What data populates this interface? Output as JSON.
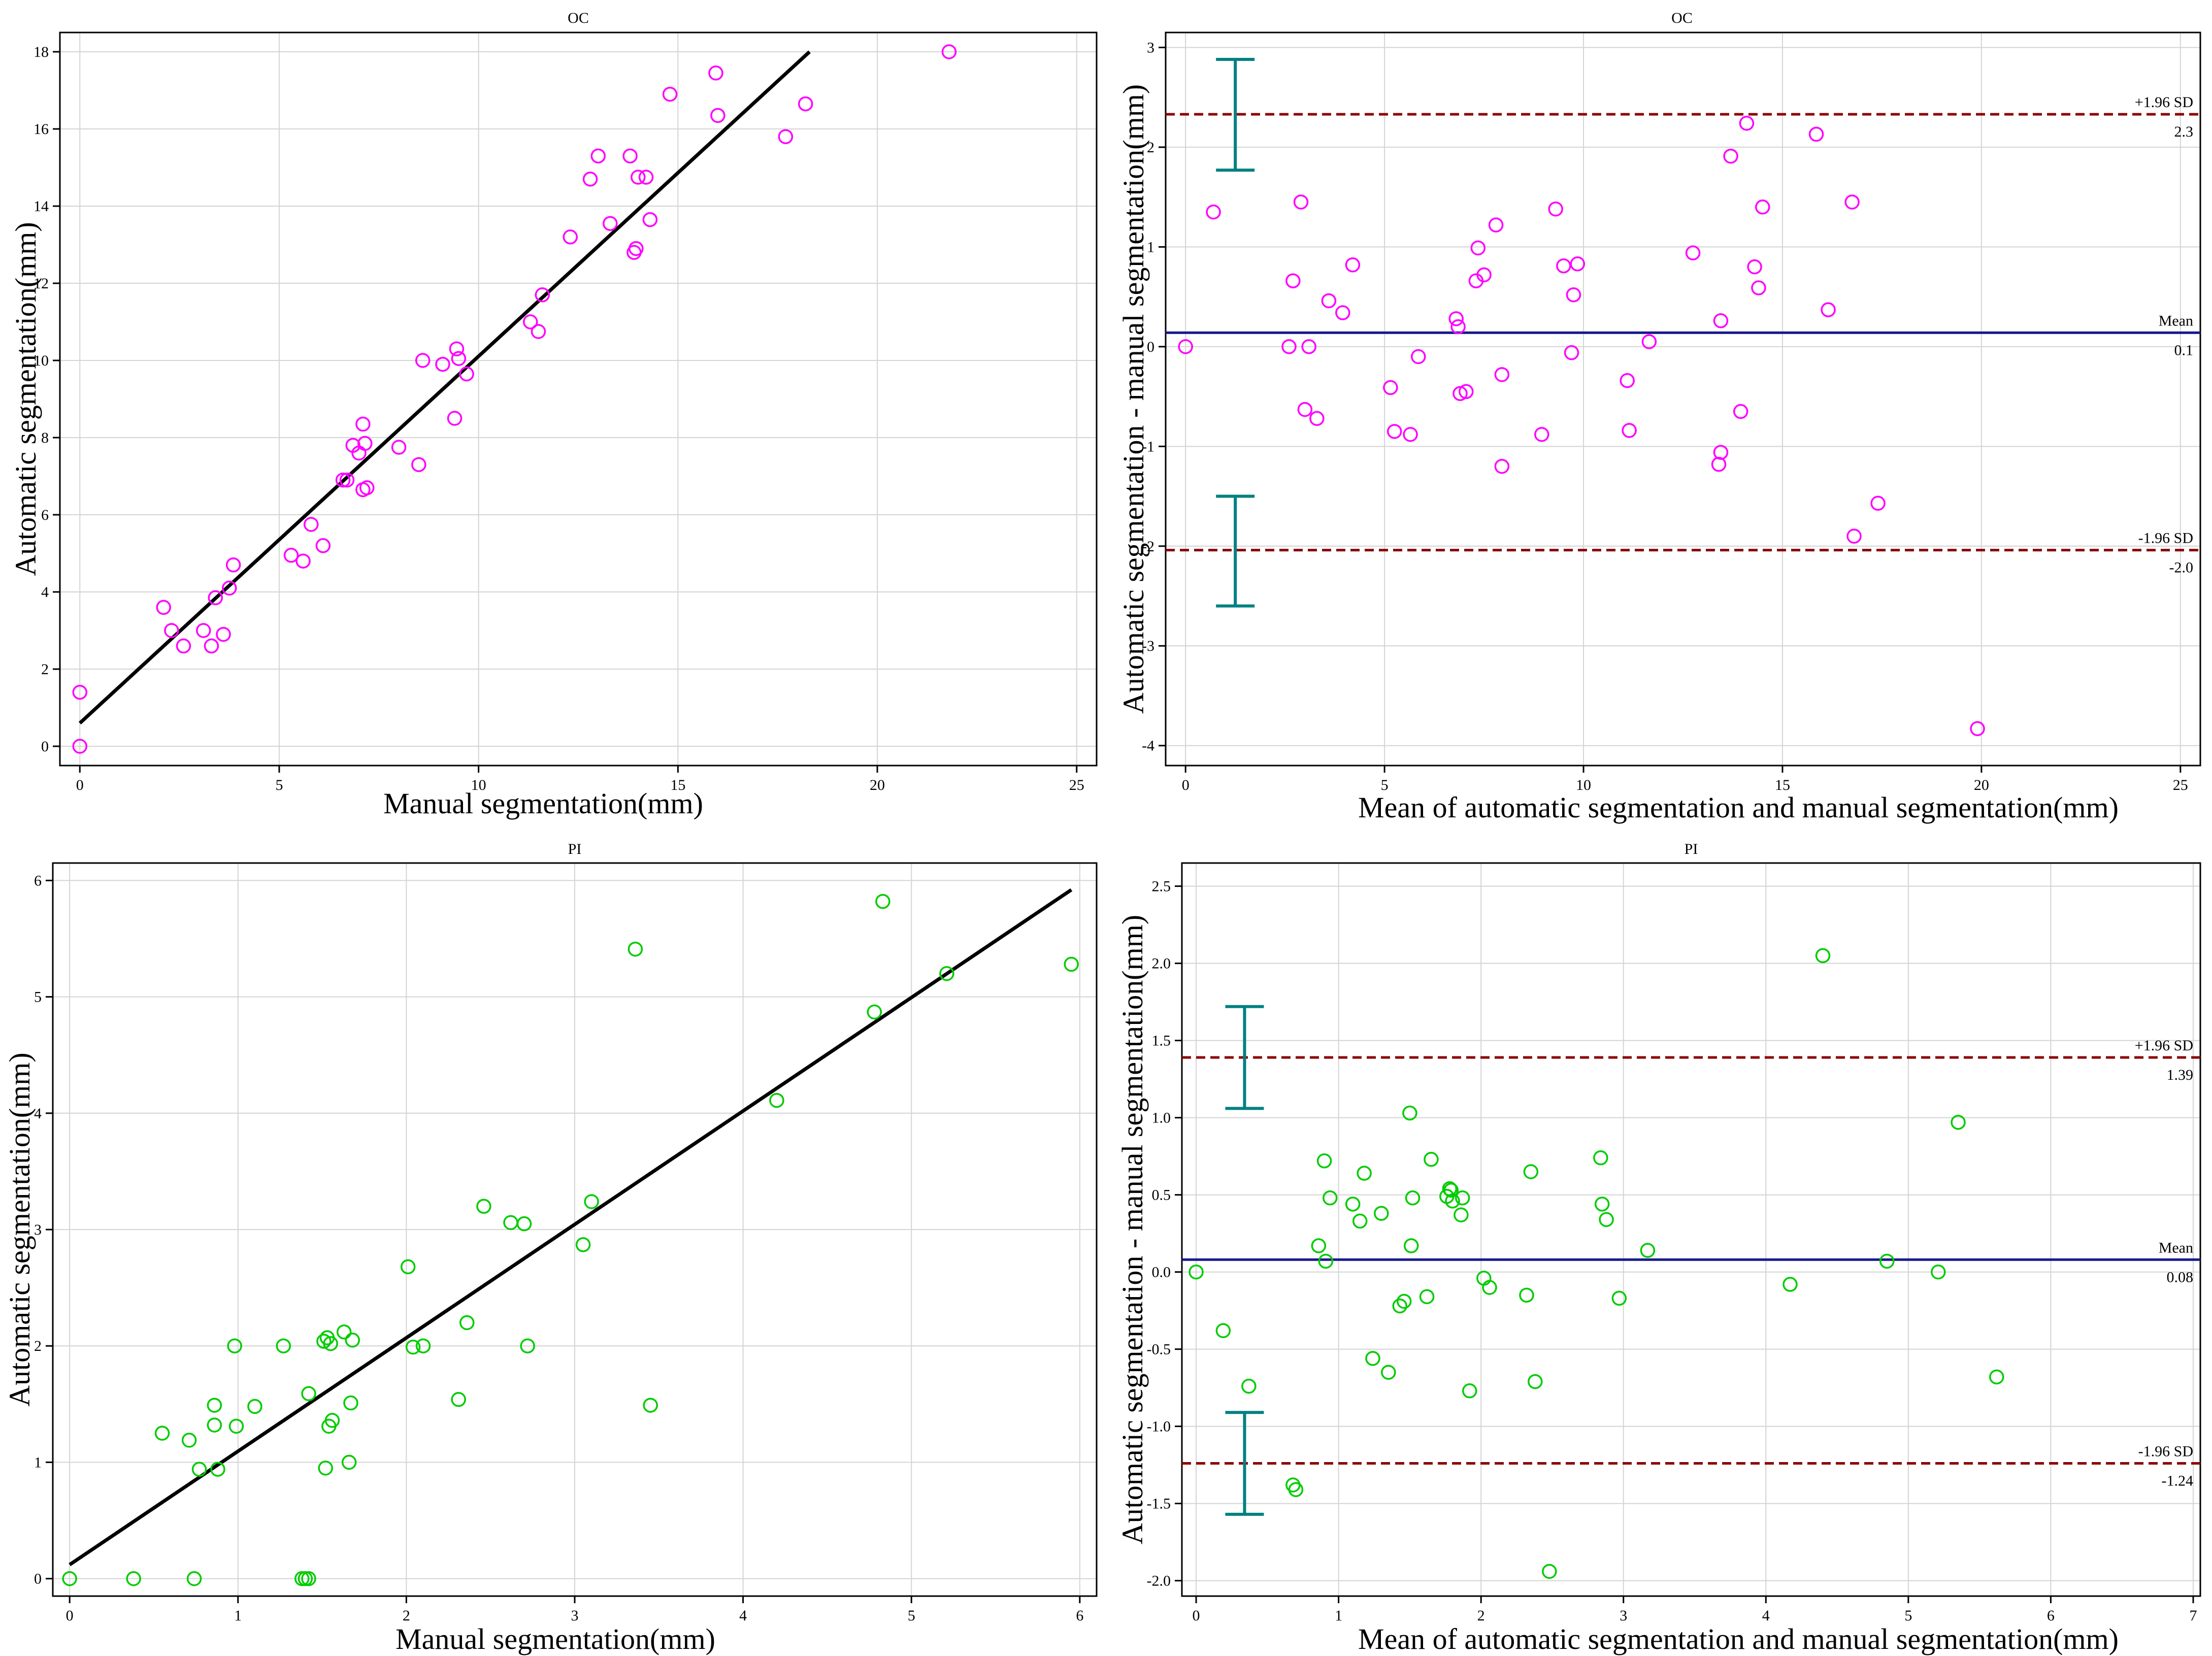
{
  "chart_data": [
    {
      "id": "oc-scatter",
      "type": "scatter",
      "title": "OC",
      "xlabel": "Manual segmentation(mm)",
      "ylabel": "Automatic segmentation(mm)",
      "xlim": [
        -0.5,
        25.5
      ],
      "ylim": [
        -0.5,
        18.5
      ],
      "xticks": [
        0,
        5,
        10,
        15,
        20,
        25
      ],
      "yticks": [
        0,
        2,
        4,
        6,
        8,
        10,
        12,
        14,
        16,
        18
      ],
      "grid": true,
      "marker_color": "#ff00ff",
      "fit_line": {
        "x": [
          0,
          18.3
        ],
        "y": [
          0.6,
          18
        ]
      },
      "points": {
        "x": [
          0,
          0,
          2.1,
          2.3,
          2.6,
          3.1,
          3.3,
          3.4,
          3.6,
          3.75,
          3.85,
          5.3,
          5.6,
          5.8,
          6.1,
          6.6,
          6.7,
          6.85,
          7.0,
          7.1,
          7.1,
          7.15,
          7.2,
          8.0,
          8.5,
          8.6,
          9.1,
          9.4,
          9.45,
          9.5,
          9.7,
          11.3,
          11.5,
          11.6,
          12.3,
          12.8,
          13.0,
          13.3,
          13.8,
          13.9,
          13.95,
          14.0,
          14.2,
          14.3,
          14.8,
          15.95,
          16.0,
          17.7,
          18.2,
          21.8
        ],
        "y": [
          0,
          1.4,
          3.6,
          3.0,
          2.6,
          3.0,
          2.6,
          3.85,
          2.9,
          4.1,
          4.7,
          4.95,
          4.8,
          5.75,
          5.2,
          6.9,
          6.9,
          7.8,
          7.6,
          8.35,
          6.65,
          7.85,
          6.7,
          7.75,
          7.3,
          10.0,
          9.9,
          8.5,
          10.3,
          10.05,
          9.65,
          11.0,
          10.75,
          11.7,
          13.2,
          14.7,
          15.3,
          13.55,
          15.3,
          12.8,
          12.9,
          14.75,
          14.75,
          13.65,
          16.9,
          17.45,
          16.35,
          15.8,
          16.65,
          18.0
        ]
      }
    },
    {
      "id": "oc-bland-altman",
      "type": "scatter",
      "title": "OC",
      "xlabel": "Mean of automatic segmentation and manual segmentation(mm)",
      "ylabel": "Automatic segmentation - manual segmentation(mm)",
      "xlim": [
        -0.5,
        25.5
      ],
      "ylim": [
        -4.2,
        3.15
      ],
      "xticks": [
        0,
        5,
        10,
        15,
        20,
        25
      ],
      "yticks": [
        -4,
        -3,
        -2,
        -1,
        0,
        1,
        2,
        3
      ],
      "grid": true,
      "marker_color": "#ff00ff",
      "mean": {
        "value": 0.14,
        "label": "Mean",
        "value_text": "0.1"
      },
      "upper_loa": {
        "value": 2.33,
        "label": "+1.96 SD",
        "value_text": "2.3"
      },
      "lower_loa": {
        "value": -2.04,
        "label": "-1.96 SD",
        "value_text": "-2.0"
      },
      "ci_x": 1.25,
      "ci_upper": [
        1.77,
        2.88
      ],
      "ci_lower": [
        -2.6,
        -1.5
      ],
      "points": {
        "x": [
          0,
          0.7,
          2.6,
          2.7,
          2.9,
          3.0,
          3.1,
          3.3,
          3.6,
          3.95,
          4.2,
          5.15,
          5.25,
          5.65,
          5.85,
          6.8,
          6.85,
          6.9,
          7.05,
          7.3,
          7.35,
          7.5,
          7.8,
          7.95,
          7.95,
          8.95,
          9.3,
          9.5,
          9.7,
          9.75,
          9.85,
          11.1,
          11.15,
          11.65,
          12.75,
          13.4,
          13.45,
          13.45,
          13.7,
          13.95,
          14.1,
          14.3,
          14.4,
          14.5,
          15.85,
          16.15,
          16.75,
          16.8,
          17.4,
          19.9
        ],
        "y": [
          0,
          1.35,
          0,
          0.66,
          1.45,
          -0.63,
          0,
          -0.72,
          0.46,
          0.34,
          0.82,
          -0.41,
          -0.85,
          -0.88,
          -0.1,
          0.28,
          0.2,
          -0.47,
          -0.45,
          0.66,
          0.99,
          0.72,
          1.22,
          -0.28,
          -1.2,
          -0.88,
          1.38,
          0.81,
          -0.06,
          0.52,
          0.83,
          -0.34,
          -0.84,
          0.05,
          0.94,
          -1.18,
          -1.06,
          0.26,
          1.91,
          -0.65,
          2.24,
          0.8,
          0.59,
          1.4,
          2.13,
          0.37,
          1.45,
          -1.9,
          -1.57,
          -3.83
        ]
      }
    },
    {
      "id": "pi-scatter",
      "type": "scatter",
      "title": "PI",
      "xlabel": "Manual segmentation(mm)",
      "ylabel": "Automatic segmentation(mm)",
      "xlim": [
        -0.1,
        6.1
      ],
      "ylim": [
        -0.15,
        6.15
      ],
      "xticks": [
        0,
        1,
        2,
        3,
        4,
        5,
        6
      ],
      "yticks": [
        0,
        1,
        2,
        3,
        4,
        5,
        6
      ],
      "grid": true,
      "marker_color": "#00cc00",
      "fit_line": {
        "x": [
          0,
          5.95
        ],
        "y": [
          0.12,
          5.92
        ]
      },
      "points": {
        "x": [
          0,
          0.38,
          0.55,
          0.71,
          0.74,
          0.77,
          0.86,
          0.86,
          0.88,
          0.98,
          0.99,
          1.1,
          1.27,
          1.42,
          1.42,
          1.38,
          1.4,
          1.51,
          1.52,
          1.53,
          1.54,
          1.55,
          1.56,
          1.63,
          1.66,
          1.67,
          1.68,
          2.01,
          2.04,
          2.1,
          2.31,
          2.36,
          2.46,
          2.62,
          2.7,
          2.72,
          3.05,
          3.1,
          3.36,
          3.45,
          4.2,
          4.78,
          4.83,
          5.21,
          5.95
        ],
        "y": [
          0,
          0,
          1.25,
          1.19,
          0,
          0.94,
          1.49,
          1.32,
          0.94,
          2.0,
          1.31,
          1.48,
          2.0,
          1.59,
          0,
          0,
          0,
          2.04,
          0.95,
          2.07,
          1.31,
          2.02,
          1.36,
          2.12,
          1.0,
          1.51,
          2.05,
          2.68,
          1.99,
          2.0,
          1.54,
          2.2,
          3.2,
          3.06,
          3.05,
          2.0,
          2.87,
          3.24,
          5.41,
          1.49,
          4.11,
          4.87,
          5.82,
          5.2,
          5.28
        ]
      }
    },
    {
      "id": "pi-bland-altman",
      "type": "scatter",
      "title": "PI",
      "xlabel": "Mean of automatic segmentation and manual segmentation(mm)",
      "ylabel": "Automatic segmentation - manual segmentation(mm)",
      "xlim": [
        -0.1,
        7.05
      ],
      "ylim": [
        -2.1,
        2.65
      ],
      "xticks": [
        0,
        1,
        2,
        3,
        4,
        5,
        6,
        7
      ],
      "yticks": [
        -2.0,
        -1.5,
        -1.0,
        -0.5,
        0.0,
        0.5,
        1.0,
        1.5,
        2.0,
        2.5
      ],
      "grid": true,
      "marker_color": "#00cc00",
      "mean": {
        "value": 0.08,
        "label": "Mean",
        "value_text": "0.08"
      },
      "upper_loa": {
        "value": 1.39,
        "label": "+1.96 SD",
        "value_text": "1.39"
      },
      "lower_loa": {
        "value": -1.24,
        "label": "-1.96 SD",
        "value_text": "-1.24"
      },
      "ci_x": 0.34,
      "ci_upper": [
        1.06,
        1.72
      ],
      "ci_lower": [
        -1.57,
        -0.91
      ],
      "points": {
        "x": [
          0,
          0.19,
          0.37,
          0.68,
          0.7,
          0.86,
          0.9,
          0.91,
          0.94,
          1.1,
          1.15,
          1.18,
          1.24,
          1.3,
          1.35,
          1.43,
          1.46,
          1.5,
          1.51,
          1.52,
          1.62,
          1.65,
          1.76,
          1.78,
          1.79,
          1.8,
          1.86,
          1.87,
          1.92,
          2.02,
          2.06,
          2.32,
          2.35,
          2.38,
          2.48,
          2.84,
          2.85,
          2.88,
          2.97,
          3.17,
          4.17,
          4.4,
          4.85,
          5.21,
          5.35,
          5.62
        ],
        "y": [
          0,
          -0.38,
          -0.74,
          -1.38,
          -1.41,
          0.17,
          0.72,
          0.07,
          0.48,
          0.44,
          0.33,
          0.64,
          -0.56,
          0.38,
          -0.65,
          -0.22,
          -0.19,
          1.03,
          0.17,
          0.48,
          -0.16,
          0.73,
          0.49,
          0.54,
          0.53,
          0.46,
          0.37,
          0.48,
          -0.77,
          -0.04,
          -0.1,
          -0.15,
          0.65,
          -0.71,
          -1.94,
          0.74,
          0.44,
          0.34,
          -0.17,
          0.14,
          -0.08,
          2.05,
          0.07,
          0.0,
          0.97,
          -0.68
        ]
      }
    }
  ]
}
